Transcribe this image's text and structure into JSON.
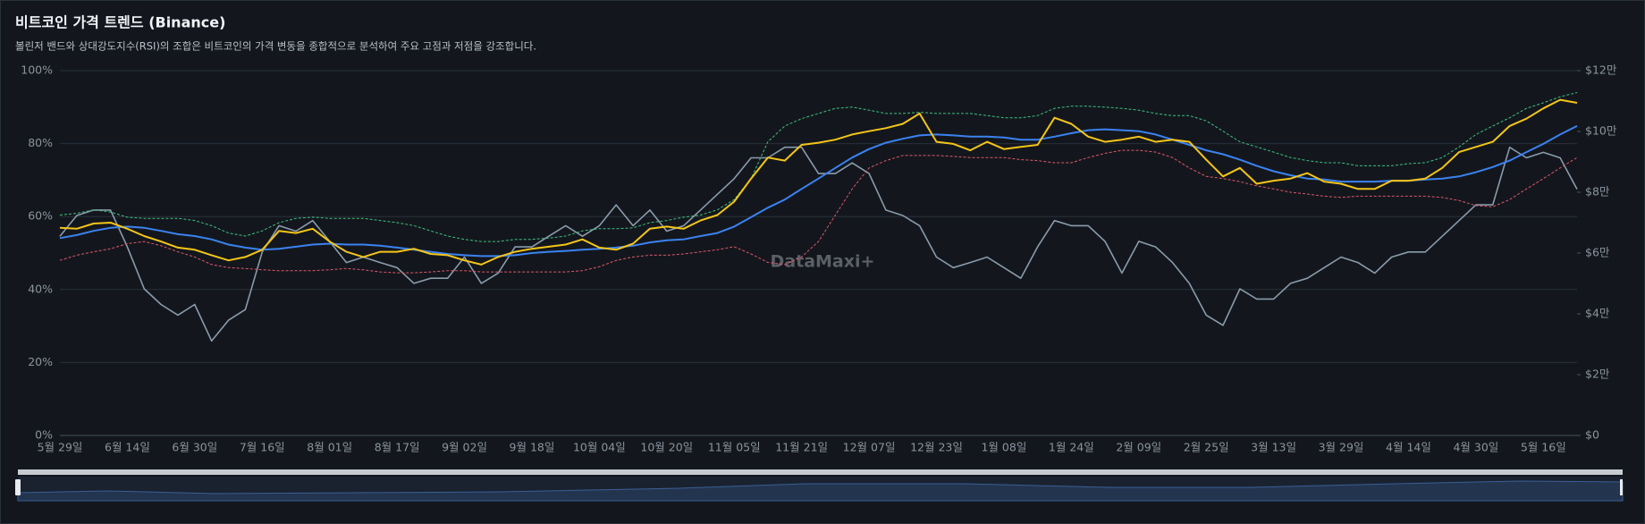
{
  "chart_data": {
    "type": "line",
    "title": "비트코인 가격 트렌드 (Binance)",
    "subtitle": "볼린저 밴드와 상대강도지수(RSI)의 조합은 비트코인의 가격 변동을 종합적으로 분석하여 주요 고점과 저점을 강조합니다.",
    "watermark": "DataMaxi+",
    "grid": true,
    "categories": [
      "5월 29일",
      null,
      null,
      null,
      "6월 14일",
      null,
      null,
      null,
      "6월 30일",
      null,
      null,
      null,
      "7월 16일",
      null,
      null,
      null,
      "8월 01일",
      null,
      null,
      null,
      "8월 17일",
      null,
      null,
      null,
      "9월 02일",
      null,
      null,
      null,
      "9월 18일",
      null,
      null,
      null,
      "10월 04일",
      null,
      null,
      null,
      "10월 20일",
      null,
      null,
      null,
      "11월 05일",
      null,
      null,
      null,
      "11월 21일",
      null,
      null,
      null,
      "12월 07일",
      null,
      null,
      null,
      "12월 23일",
      null,
      null,
      null,
      "1월 08일",
      null,
      null,
      null,
      "1월 24일",
      null,
      null,
      null,
      "2월 09일",
      null,
      null,
      null,
      "2월 25일",
      null,
      null,
      null,
      "3월 13일",
      null,
      null,
      null,
      "3월 29일",
      null,
      null,
      null,
      "4월 14일",
      null,
      null,
      null,
      "4월 30일",
      null,
      null,
      null,
      "5월 16일",
      null,
      null
    ],
    "ylim": [
      0,
      100
    ],
    "yticks": [
      {
        "value": 0,
        "label": "0%"
      },
      {
        "value": 20,
        "label": "20%"
      },
      {
        "value": 40,
        "label": "40%"
      },
      {
        "value": 60,
        "label": "60%"
      },
      {
        "value": 80,
        "label": "80%"
      },
      {
        "value": 100,
        "label": "100%"
      }
    ],
    "y2lim": [
      0,
      120000
    ],
    "y2ticks": [
      {
        "value": 0,
        "label": "$0"
      },
      {
        "value": 20000,
        "label": "$2만"
      },
      {
        "value": 40000,
        "label": "$4만"
      },
      {
        "value": 60000,
        "label": "$6만"
      },
      {
        "value": 80000,
        "label": "$8만"
      },
      {
        "value": 100000,
        "label": "$10만"
      },
      {
        "value": 120000,
        "label": "$12만"
      }
    ],
    "series": [
      {
        "color": "#8a9bab",
        "width": 1.6,
        "axis": "y",
        "values": [
          54.6,
          60.3,
          61.8,
          61.8,
          51.7,
          40.2,
          35.9,
          33.0,
          35.9,
          25.9,
          31.6,
          34.5,
          50.3,
          57.5,
          56.0,
          58.9,
          53.2,
          47.4,
          48.9,
          47.4,
          46.0,
          41.7,
          43.1,
          43.1,
          48.9,
          41.7,
          44.5,
          51.7,
          51.7,
          54.6,
          57.5,
          54.6,
          57.5,
          63.2,
          57.5,
          61.8,
          56.0,
          57.5,
          61.8,
          66.1,
          70.4,
          76.1,
          76.1,
          79.0,
          79.0,
          71.8,
          71.8,
          74.7,
          71.8,
          61.8,
          60.3,
          57.5,
          48.9,
          46.0,
          47.4,
          48.9,
          46.0,
          43.1,
          51.7,
          58.9,
          57.5,
          57.5,
          53.2,
          44.5,
          53.2,
          51.7,
          47.4,
          41.7,
          33.0,
          30.2,
          40.2,
          37.4,
          37.4,
          41.7,
          43.1,
          46.0,
          48.9,
          47.4,
          44.5,
          48.9,
          50.3,
          50.3,
          54.6,
          58.9,
          63.2,
          63.2,
          79.0,
          76.1,
          77.6,
          76.1,
          67.5
        ]
      },
      {
        "color": "#3fbf7f",
        "width": 1,
        "dashed": true,
        "axis": "y2",
        "values": [
          72500,
          73100,
          74200,
          73500,
          71800,
          71400,
          71400,
          71400,
          70700,
          69000,
          66600,
          65600,
          67300,
          70000,
          71400,
          71800,
          71400,
          71400,
          71400,
          70700,
          70000,
          69000,
          67300,
          65600,
          64500,
          63800,
          63800,
          64500,
          64500,
          64900,
          65600,
          67300,
          68000,
          68000,
          68300,
          70000,
          70700,
          71800,
          72500,
          74200,
          77600,
          84500,
          96600,
          101800,
          104200,
          105900,
          107600,
          108000,
          107000,
          105900,
          105900,
          106300,
          105900,
          105900,
          105900,
          105200,
          104500,
          104500,
          105200,
          107600,
          108300,
          108300,
          108000,
          107600,
          107000,
          105900,
          105200,
          105200,
          103500,
          100100,
          96600,
          94900,
          93200,
          91400,
          90400,
          89700,
          89700,
          88700,
          88700,
          88700,
          89400,
          89700,
          91400,
          94900,
          99000,
          101800,
          104500,
          107600,
          109400,
          111400,
          112800
        ]
      },
      {
        "color": "#e0566a",
        "width": 1,
        "dashed": true,
        "axis": "y2",
        "values": [
          57600,
          59300,
          60400,
          61400,
          63100,
          63800,
          62400,
          60400,
          58700,
          56200,
          55200,
          54900,
          54500,
          54200,
          54200,
          54200,
          54500,
          54900,
          54500,
          53800,
          53500,
          53500,
          53800,
          54200,
          54200,
          53800,
          53800,
          53800,
          53800,
          53800,
          53800,
          54200,
          55500,
          57600,
          58700,
          59300,
          59300,
          59700,
          60400,
          61100,
          62100,
          59700,
          56900,
          56200,
          58700,
          63800,
          72500,
          81100,
          88000,
          90400,
          92100,
          92100,
          92100,
          91800,
          91400,
          91400,
          91400,
          90700,
          90400,
          89700,
          89700,
          91400,
          92800,
          93800,
          93800,
          93200,
          91400,
          88000,
          85200,
          84500,
          83500,
          82100,
          81100,
          80000,
          79400,
          78700,
          78300,
          78700,
          78700,
          78700,
          78700,
          78700,
          78300,
          77300,
          75600,
          75200,
          77600,
          81100,
          84500,
          88000,
          91400
        ]
      },
      {
        "color": "#3b82f0",
        "width": 2,
        "axis": "y2",
        "values": [
          64900,
          65900,
          67300,
          68300,
          68700,
          68300,
          67300,
          66200,
          65600,
          64500,
          62800,
          61800,
          61100,
          61400,
          62100,
          62800,
          63100,
          62800,
          62800,
          62400,
          61800,
          61100,
          60400,
          59700,
          59300,
          59000,
          59000,
          59300,
          60000,
          60400,
          60700,
          61100,
          61400,
          61800,
          62400,
          63500,
          64200,
          64500,
          65600,
          66600,
          68700,
          71800,
          74900,
          77600,
          81100,
          84500,
          88000,
          91400,
          94200,
          96300,
          97600,
          98700,
          99000,
          98700,
          98300,
          98300,
          98000,
          97300,
          97300,
          98300,
          99400,
          100400,
          100700,
          100400,
          100100,
          99000,
          97300,
          95600,
          93800,
          92500,
          90700,
          88700,
          86900,
          85600,
          84500,
          84200,
          83500,
          83500,
          83500,
          83800,
          83800,
          84200,
          84500,
          85200,
          86600,
          88300,
          90400,
          93200,
          95900,
          99000,
          101800
        ]
      },
      {
        "color": "#f5c518",
        "width": 2,
        "axis": "y2",
        "values": [
          68300,
          68000,
          69700,
          70000,
          68000,
          65600,
          63800,
          61800,
          61100,
          59300,
          57600,
          58700,
          61100,
          67300,
          66600,
          68000,
          63800,
          60400,
          58700,
          60400,
          60400,
          61400,
          59700,
          59300,
          57600,
          56200,
          58700,
          60400,
          61400,
          62100,
          62800,
          64500,
          61800,
          61100,
          63100,
          68000,
          68700,
          68000,
          70700,
          72500,
          76900,
          84500,
          91400,
          90400,
          95600,
          96300,
          97300,
          99000,
          100100,
          101100,
          102500,
          105900,
          96600,
          95900,
          93800,
          96600,
          94200,
          94900,
          95600,
          104500,
          102500,
          98300,
          96600,
          97300,
          98300,
          96600,
          97300,
          96600,
          90700,
          85200,
          88000,
          82800,
          83800,
          84500,
          86300,
          83500,
          82800,
          81100,
          81100,
          83800,
          83800,
          84500,
          88000,
          93200,
          94900,
          96600,
          101800,
          104200,
          107600,
          110400,
          109400
        ]
      }
    ]
  }
}
